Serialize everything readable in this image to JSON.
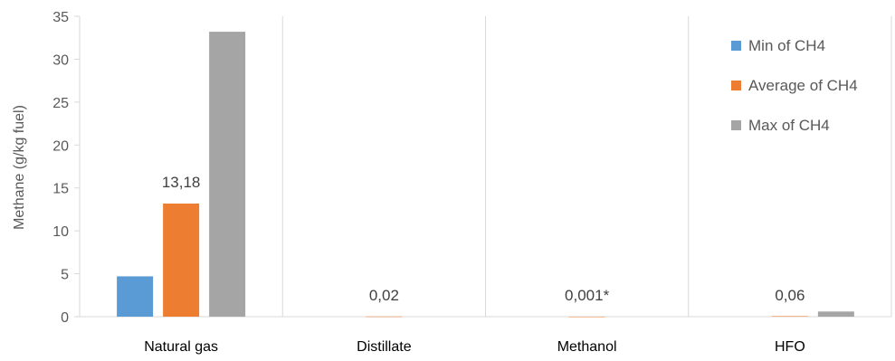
{
  "chart_data": {
    "type": "bar",
    "ylabel": "Methane (g/kg fuel)",
    "ylim": [
      0,
      35
    ],
    "yticks": [
      0,
      5,
      10,
      15,
      20,
      25,
      30,
      35
    ],
    "categories": [
      "Natural gas",
      "Distillate",
      "Methanol",
      "HFO"
    ],
    "series": [
      {
        "name": "Min of CH4",
        "color": "#5b9bd5",
        "values": [
          4.7,
          0,
          0,
          0
        ]
      },
      {
        "name": "Average of CH4",
        "color": "#ed7d31",
        "values": [
          13.18,
          0.02,
          0.001,
          0.06
        ]
      },
      {
        "name": "Max of CH4",
        "color": "#a5a5a5",
        "values": [
          33.2,
          0,
          0,
          0.6
        ]
      }
    ],
    "annotations": [
      {
        "category": "Natural gas",
        "text": "13,18"
      },
      {
        "category": "Distillate",
        "text": "0,02"
      },
      {
        "category": "Methanol",
        "text": "0,001*"
      },
      {
        "category": "HFO",
        "text": "0,06"
      }
    ],
    "legend_position": "top-right",
    "grid": "vertical category separators"
  }
}
